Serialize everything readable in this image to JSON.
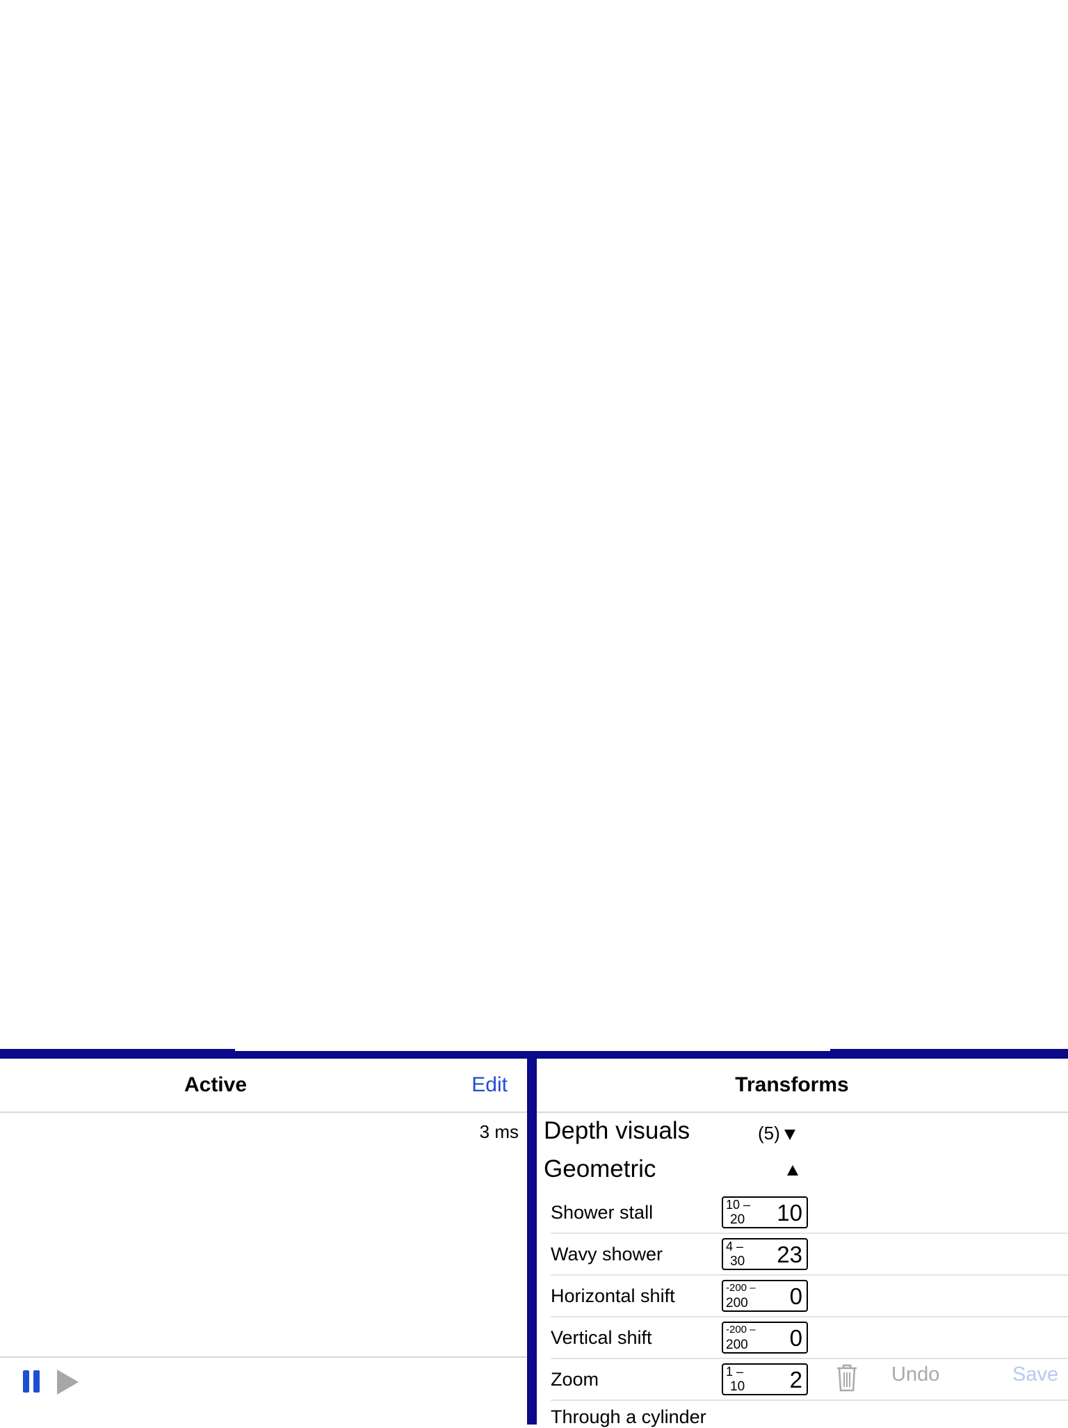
{
  "left_panel": {
    "title": "Active",
    "edit_label": "Edit",
    "timing": "3 ms"
  },
  "right_panel": {
    "title": "Transforms",
    "sections": [
      {
        "label": "Depth visuals",
        "count": "(5)",
        "state": "collapsed"
      },
      {
        "label": "Geometric",
        "state": "expanded"
      }
    ],
    "params": [
      {
        "label": "Shower stall",
        "min": "10 –",
        "max": "20",
        "value": "10"
      },
      {
        "label": "Wavy shower",
        "min": "4 –",
        "max": "30",
        "value": "23"
      },
      {
        "label": "Horizontal shift",
        "min": "-200 –",
        "max": "200",
        "value": "0"
      },
      {
        "label": "Vertical shift",
        "min": "-200 –",
        "max": "200",
        "value": "0"
      },
      {
        "label": "Zoom",
        "min": "1 –",
        "max": "10",
        "value": "2"
      }
    ],
    "undo_label": "Undo",
    "save_label": "Save",
    "next_item": "Through a cylinder"
  },
  "colors": {
    "divider": "#0a0a8a",
    "accent": "#1f4fd1",
    "disabled": "#a9a9a9"
  },
  "icons": [
    "pause-icon",
    "play-icon",
    "chevron-down-icon",
    "chevron-up-icon",
    "trash-icon"
  ]
}
